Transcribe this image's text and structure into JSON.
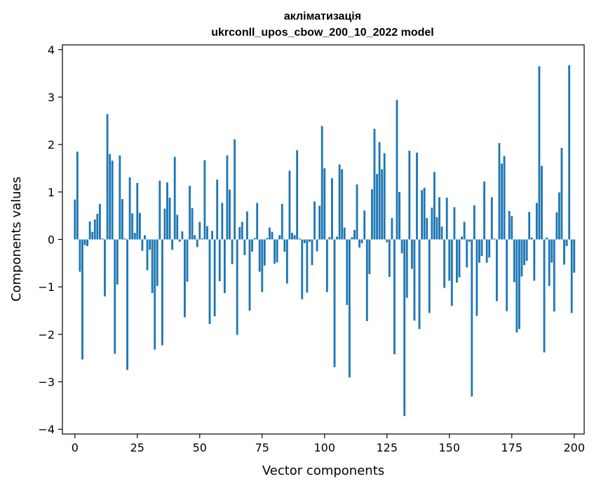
{
  "chart_data": {
    "type": "bar",
    "title": "акліматизація",
    "subtitle": "ukrconll_upos_cbow_200_10_2022 model",
    "xlabel": "Vector components",
    "ylabel": "Components values",
    "xlim": [
      -5,
      204
    ],
    "ylim": [
      -4.1,
      4.1
    ],
    "xticks": [
      0,
      25,
      50,
      75,
      100,
      125,
      150,
      175,
      200
    ],
    "yticks": [
      -4,
      -3,
      -2,
      -1,
      0,
      1,
      2,
      3,
      4
    ],
    "xtick_labels": [
      "0",
      "25",
      "50",
      "75",
      "100",
      "125",
      "150",
      "175",
      "200"
    ],
    "ytick_labels": [
      "−4",
      "−3",
      "−2",
      "−1",
      "0",
      "1",
      "2",
      "3",
      "4"
    ],
    "color": "#1f77b4",
    "grid": false,
    "values": [
      0.84,
      1.85,
      -0.68,
      -2.53,
      -0.12,
      -0.14,
      0.38,
      0.16,
      0.42,
      0.54,
      0.75,
      0.02,
      -1.2,
      2.64,
      1.8,
      1.66,
      -2.41,
      -0.95,
      1.77,
      0.85,
      0.02,
      -2.75,
      1.31,
      0.55,
      0.14,
      1.19,
      0.56,
      -0.24,
      0.09,
      -0.65,
      -0.22,
      -1.13,
      -2.32,
      -0.98,
      1.24,
      -2.23,
      0.65,
      1.2,
      0.88,
      -0.22,
      1.74,
      0.52,
      -0.05,
      0.17,
      -1.64,
      -0.89,
      1.13,
      0.66,
      0.09,
      -0.16,
      0.37,
      0.02,
      1.67,
      0.28,
      -1.78,
      0.18,
      -1.62,
      1.26,
      -0.88,
      0.77,
      -1.13,
      1.77,
      1.05,
      -0.52,
      2.11,
      -2.01,
      0.26,
      0.37,
      -0.33,
      0.59,
      -1.5,
      -0.26,
      0.03,
      0.77,
      -0.68,
      -1.11,
      -0.55,
      0.03,
      0.25,
      0.16,
      -0.51,
      -0.48,
      0.09,
      0.75,
      -0.26,
      -0.93,
      1.45,
      0.14,
      0.09,
      1.88,
      0.02,
      -1.26,
      -0.08,
      -1.12,
      -0.05,
      -0.54,
      0.8,
      -0.25,
      0.71,
      2.39,
      1.5,
      -1.11,
      0.05,
      1.29,
      -2.69,
      0.06,
      1.58,
      1.48,
      0.25,
      -1.38,
      -2.91,
      0.05,
      0.2,
      1.16,
      -0.17,
      -0.08,
      0.61,
      -1.72,
      -0.73,
      1.06,
      2.33,
      1.38,
      2.05,
      1.48,
      1.82,
      -0.06,
      -0.79,
      0.45,
      -2.42,
      2.94,
      1.0,
      -0.29,
      -3.72,
      -1.23,
      1.87,
      -0.62,
      -1.71,
      1.83,
      -1.89,
      1.04,
      1.09,
      0.45,
      -1.55,
      0.67,
      1.42,
      0.47,
      0.89,
      0.27,
      -1.02,
      0.88,
      -0.87,
      -1.4,
      0.68,
      -0.91,
      -0.8,
      0.06,
      0.37,
      -0.59,
      -0.05,
      -3.31,
      0.72,
      -1.61,
      -0.49,
      -0.35,
      1.22,
      -0.49,
      -0.38,
      0.89,
      0.02,
      -1.3,
      2.03,
      1.6,
      1.76,
      -1.51,
      0.6,
      0.49,
      -0.9,
      -1.96,
      -1.89,
      -0.78,
      -0.54,
      -0.45,
      0.58,
      0.04,
      -0.87,
      0.77,
      3.65,
      1.55,
      -2.38,
      0.04,
      -0.98,
      -0.49,
      -1.52,
      0.57,
      0.99,
      1.93,
      -0.53,
      -0.14,
      3.67,
      -1.55,
      -0.7
    ]
  }
}
